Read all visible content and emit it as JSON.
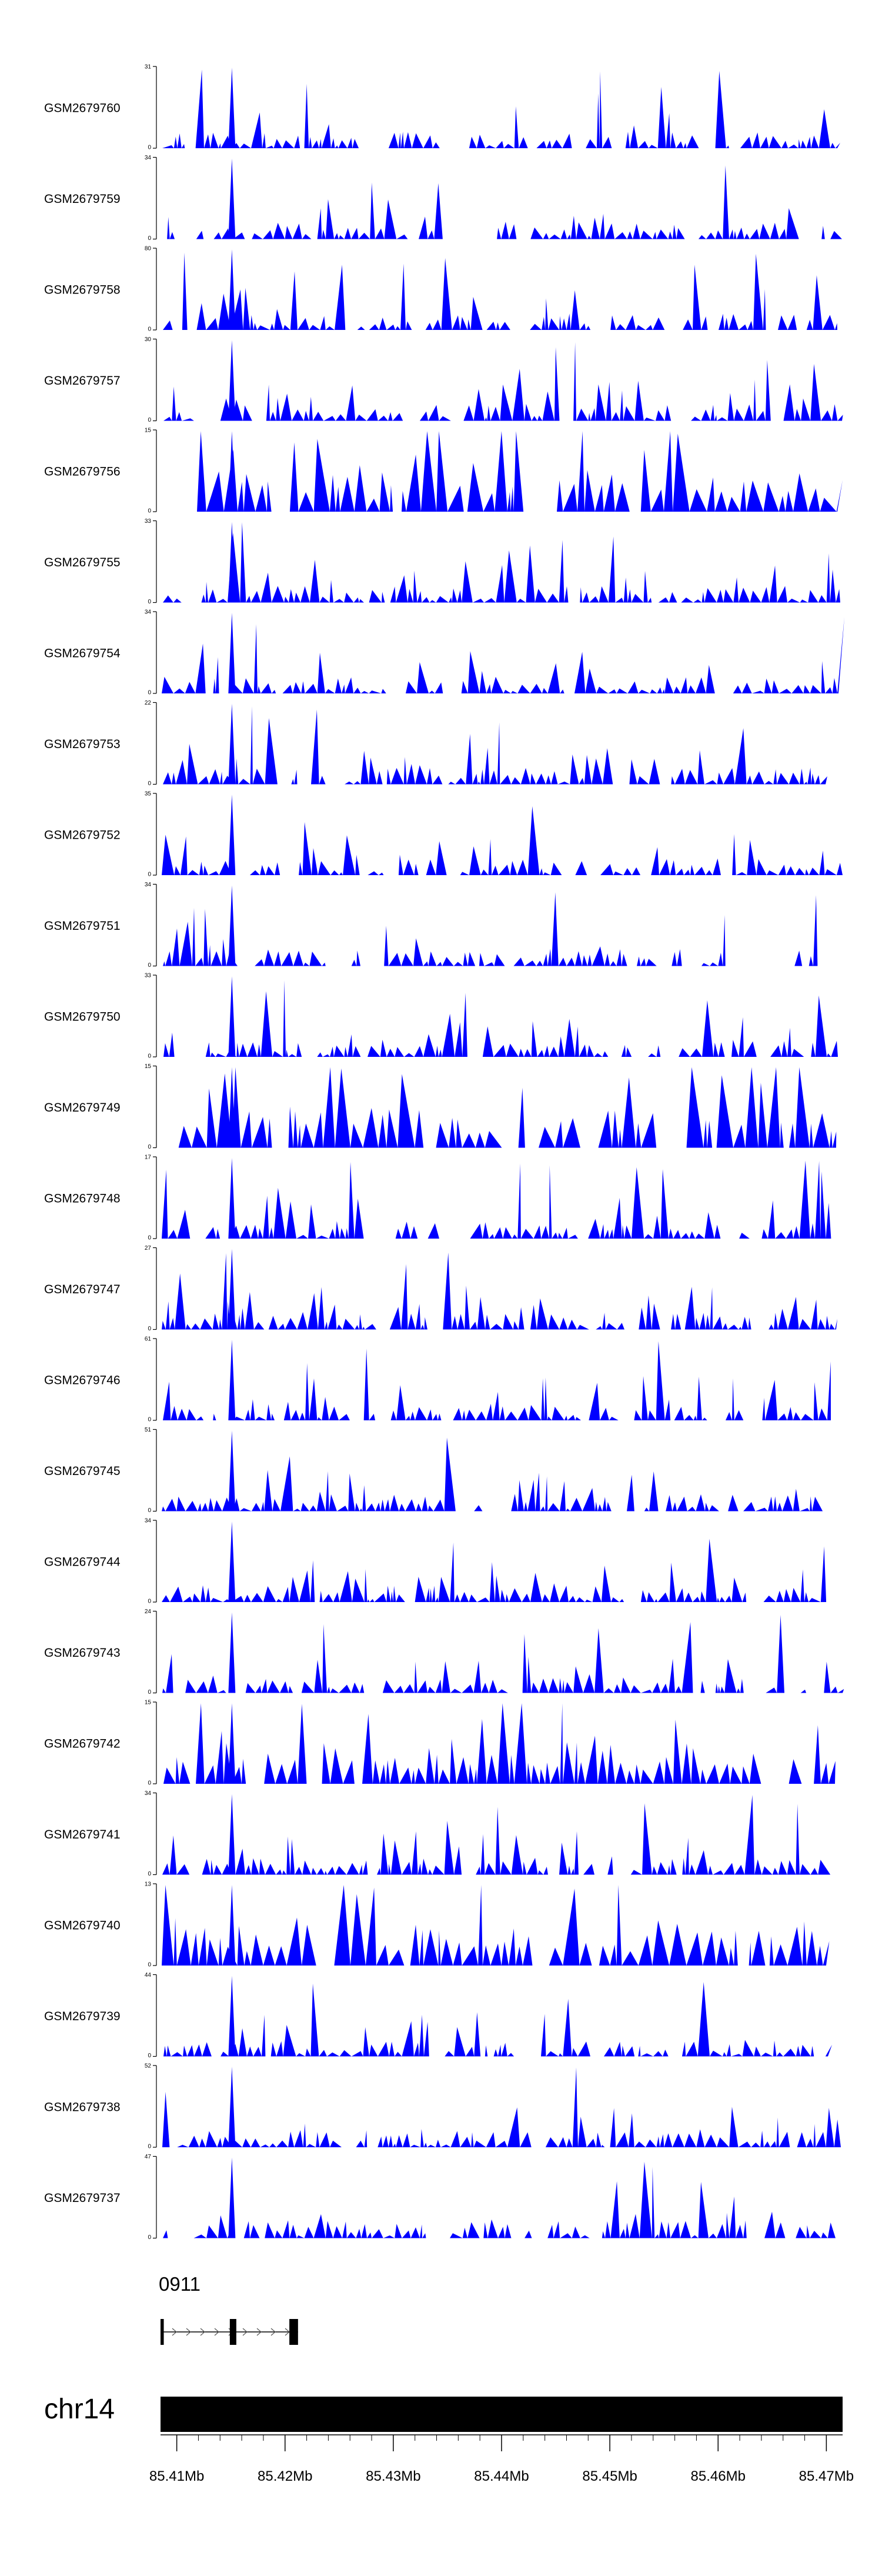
{
  "chart_data": {
    "type": "area",
    "title": "",
    "chromosome": "chr14",
    "xlim_mb": [
      85.4085,
      85.4715
    ],
    "colors": {
      "signal": "#0000ff",
      "axis": "#000000",
      "ideogram": "#000000"
    },
    "tracks": [
      {
        "name": "GSM2679760",
        "ymax": "31",
        "ymin": "0"
      },
      {
        "name": "GSM2679759",
        "ymax": "34",
        "ymin": "0"
      },
      {
        "name": "GSM2679758",
        "ymax": "80",
        "ymin": "0"
      },
      {
        "name": "GSM2679757",
        "ymax": "30",
        "ymin": "0"
      },
      {
        "name": "GSM2679756",
        "ymax": "15",
        "ymin": "0"
      },
      {
        "name": "GSM2679755",
        "ymax": "33",
        "ymin": "0"
      },
      {
        "name": "GSM2679754",
        "ymax": "34",
        "ymin": "0"
      },
      {
        "name": "GSM2679753",
        "ymax": "22",
        "ymin": "0"
      },
      {
        "name": "GSM2679752",
        "ymax": "35",
        "ymin": "0"
      },
      {
        "name": "GSM2679751",
        "ymax": "34",
        "ymin": "0"
      },
      {
        "name": "GSM2679750",
        "ymax": "33",
        "ymin": "0"
      },
      {
        "name": "GSM2679749",
        "ymax": "15",
        "ymin": "0"
      },
      {
        "name": "GSM2679748",
        "ymax": "17",
        "ymin": "0"
      },
      {
        "name": "GSM2679747",
        "ymax": "27",
        "ymin": "0"
      },
      {
        "name": "GSM2679746",
        "ymax": "61",
        "ymin": "0"
      },
      {
        "name": "GSM2679745",
        "ymax": "51",
        "ymin": "0"
      },
      {
        "name": "GSM2679744",
        "ymax": "34",
        "ymin": "0"
      },
      {
        "name": "GSM2679743",
        "ymax": "24",
        "ymin": "0"
      },
      {
        "name": "GSM2679742",
        "ymax": "15",
        "ymin": "0"
      },
      {
        "name": "GSM2679741",
        "ymax": "34",
        "ymin": "0"
      },
      {
        "name": "GSM2679740",
        "ymax": "13",
        "ymin": "0"
      },
      {
        "name": "GSM2679739",
        "ymax": "44",
        "ymin": "0"
      },
      {
        "name": "GSM2679738",
        "ymax": "52",
        "ymin": "0"
      },
      {
        "name": "GSM2679737",
        "ymax": "47",
        "ymin": "0"
      }
    ],
    "gene": {
      "name": "0911",
      "start_mb": 85.4085,
      "end_mb": 85.4212,
      "exons_mb": [
        [
          85.4085,
          85.4088
        ],
        [
          85.4149,
          85.4155
        ],
        [
          85.4204,
          85.4212
        ]
      ],
      "strand": "+"
    },
    "axis": {
      "major_ticks_mb": [
        85.41,
        85.42,
        85.43,
        85.44,
        85.45,
        85.46,
        85.47
      ],
      "tick_labels": [
        "85.41Mb",
        "85.42Mb",
        "85.43Mb",
        "85.44Mb",
        "85.45Mb",
        "85.46Mb",
        "85.47Mb"
      ],
      "minor_tick_step_mb": 0.002
    }
  }
}
